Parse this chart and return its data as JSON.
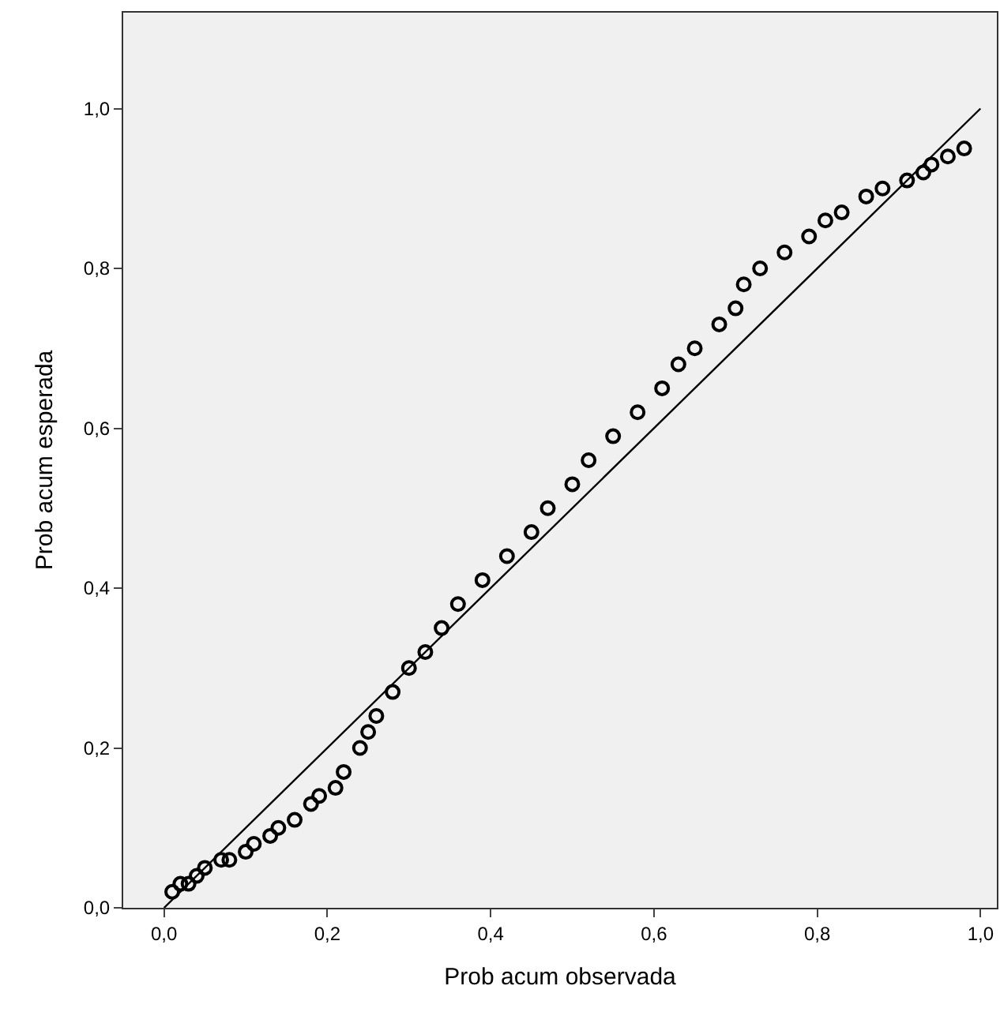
{
  "chart_data": {
    "type": "scatter",
    "xlabel": "Prob acum observada",
    "ylabel": "Prob acum esperada",
    "xlim": [
      -0.05,
      1.02
    ],
    "ylim": [
      0,
      1.12
    ],
    "xticks": [
      {
        "value": 0,
        "label": "0,0"
      },
      {
        "value": 0.2,
        "label": "0,2"
      },
      {
        "value": 0.4,
        "label": "0,4"
      },
      {
        "value": 0.6,
        "label": "0,6"
      },
      {
        "value": 0.8,
        "label": "0,8"
      },
      {
        "value": 1.0,
        "label": "1,0"
      }
    ],
    "yticks": [
      {
        "value": 0,
        "label": "0,0"
      },
      {
        "value": 0.2,
        "label": "0,2"
      },
      {
        "value": 0.4,
        "label": "0,4"
      },
      {
        "value": 0.6,
        "label": "0,6"
      },
      {
        "value": 0.8,
        "label": "0,8"
      },
      {
        "value": 1.0,
        "label": "1,0"
      }
    ],
    "grid": false,
    "legend": false,
    "marker": "circle",
    "series": [
      {
        "color": "#000000",
        "x": [
          0.01,
          0.02,
          0.03,
          0.04,
          0.05,
          0.07,
          0.08,
          0.1,
          0.11,
          0.13,
          0.14,
          0.16,
          0.18,
          0.19,
          0.21,
          0.22,
          0.24,
          0.25,
          0.26,
          0.28,
          0.3,
          0.32,
          0.34,
          0.36,
          0.39,
          0.42,
          0.45,
          0.47,
          0.5,
          0.52,
          0.55,
          0.58,
          0.61,
          0.63,
          0.65,
          0.68,
          0.7,
          0.71,
          0.73,
          0.76,
          0.79,
          0.81,
          0.83,
          0.86,
          0.88,
          0.91,
          0.93,
          0.94,
          0.96,
          0.98
        ],
        "values": [
          0.02,
          0.03,
          0.03,
          0.04,
          0.05,
          0.06,
          0.06,
          0.07,
          0.08,
          0.09,
          0.1,
          0.11,
          0.13,
          0.14,
          0.15,
          0.17,
          0.2,
          0.22,
          0.24,
          0.27,
          0.3,
          0.32,
          0.35,
          0.38,
          0.41,
          0.44,
          0.47,
          0.5,
          0.53,
          0.56,
          0.59,
          0.62,
          0.65,
          0.68,
          0.7,
          0.73,
          0.75,
          0.78,
          0.8,
          0.82,
          0.84,
          0.86,
          0.87,
          0.89,
          0.9,
          0.91,
          0.92,
          0.93,
          0.94,
          0.95
        ]
      },
      {
        "type": "line",
        "marker": "none",
        "color": "#000000",
        "x": [
          0,
          1
        ],
        "values": [
          0,
          1
        ]
      }
    ]
  }
}
